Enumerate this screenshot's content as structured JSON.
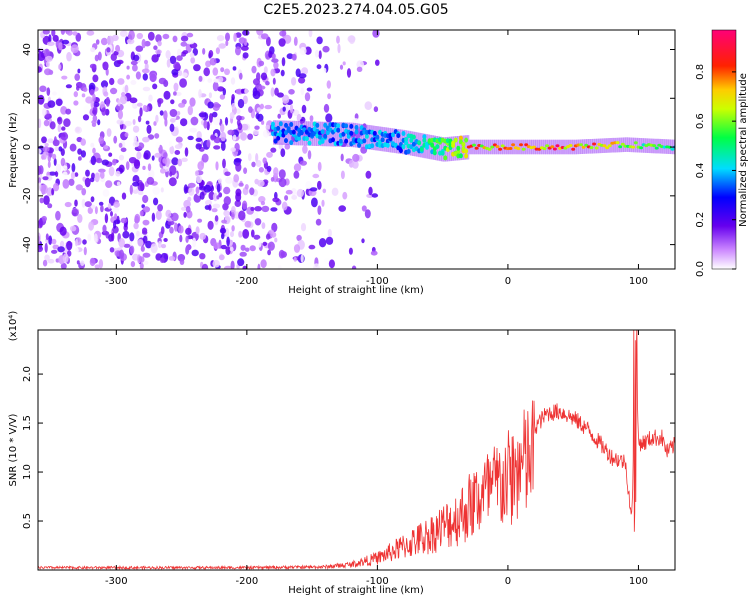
{
  "title": "C2E5.2023.274.04.05.G05",
  "chart_data": [
    {
      "type": "heatmap",
      "xlabel": "Height of straight line (km)",
      "ylabel": "Frequency (Hz)",
      "xlim": [
        -360,
        128
      ],
      "ylim": [
        -50,
        48
      ],
      "xticks": [
        -300,
        -200,
        -100,
        0,
        100
      ],
      "yticks": [
        -40,
        -20,
        0,
        20,
        40
      ],
      "colorbar": {
        "label": "Normalized spectral amplitude",
        "range": [
          0,
          0.97
        ],
        "ticks": [
          0.0,
          0.2,
          0.4,
          0.6,
          0.8
        ],
        "colormap": "hsv-rainbow (white→violet→blue→cyan→green→yellow→red→magenta)"
      },
      "description_of_signal": {
        "noise_region_x": [
          -360,
          -140
        ],
        "signal_track": [
          {
            "x": -180,
            "freq": 6,
            "amp": 0.4
          },
          {
            "x": -120,
            "freq": 5,
            "amp": 0.4
          },
          {
            "x": -80,
            "freq": 2,
            "amp": 0.4
          },
          {
            "x": -50,
            "freq": -1,
            "amp": 0.6
          },
          {
            "x": -30,
            "freq": 0,
            "amp": 0.8
          },
          {
            "x": 0,
            "freq": 0,
            "amp": 0.9
          },
          {
            "x": 50,
            "freq": 0,
            "amp": 0.9
          },
          {
            "x": 90,
            "freq": 1,
            "amp": 0.7
          },
          {
            "x": 128,
            "freq": 0,
            "amp": 0.5
          }
        ]
      }
    },
    {
      "type": "line",
      "xlabel": "Height of straight line (km)",
      "ylabel": "SNR (10 * V/V)",
      "y_multiplier": "(x10⁴)",
      "xlim": [
        -360,
        128
      ],
      "ylim": [
        0,
        2.45
      ],
      "xticks": [
        -300,
        -200,
        -100,
        0,
        100
      ],
      "yticks": [
        0.5,
        1.0,
        1.5,
        2.0
      ],
      "series": [
        {
          "color": "#ee3333",
          "x": [
            -360,
            -300,
            -200,
            -140,
            -120,
            -100,
            -80,
            -60,
            -40,
            -20,
            0,
            20,
            30,
            40,
            50,
            60,
            70,
            80,
            90,
            95,
            98,
            100,
            105,
            110,
            118,
            122,
            128
          ],
          "y": [
            0.03,
            0.03,
            0.03,
            0.04,
            0.07,
            0.15,
            0.3,
            0.45,
            0.65,
            0.95,
            1.15,
            1.45,
            1.6,
            1.62,
            1.55,
            1.45,
            1.3,
            1.15,
            1.1,
            0.5,
            2.45,
            1.3,
            1.3,
            1.35,
            1.35,
            1.2,
            1.28
          ]
        }
      ]
    }
  ]
}
